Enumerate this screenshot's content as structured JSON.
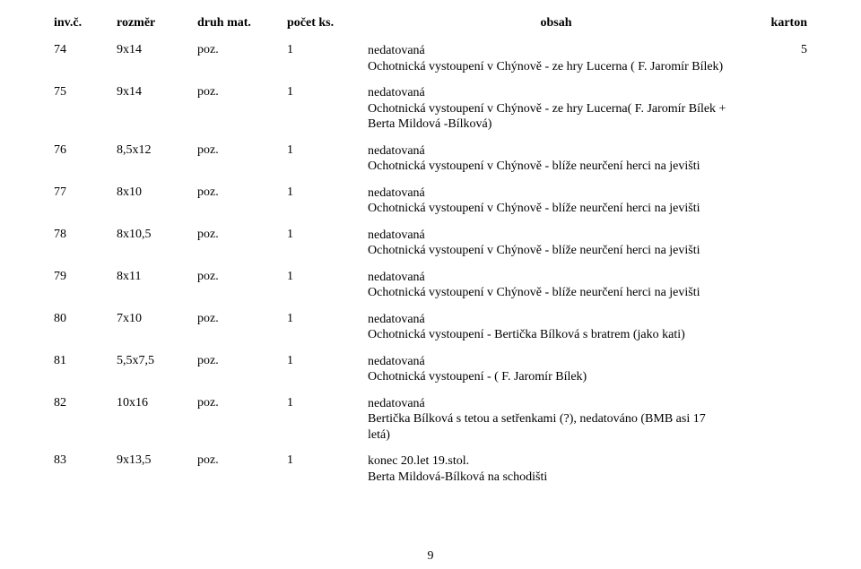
{
  "header": {
    "inv": "inv.č.",
    "rozmer": "rozměr",
    "druh": "druh mat.",
    "pocet": "počet ks.",
    "obsah": "obsah",
    "karton": "karton"
  },
  "rows": [
    {
      "inv": "74",
      "roz": "9x14",
      "druh": "poz.",
      "pocet": "1",
      "obsah": "nedatovaná\nOchotnická vystoupení v Chýnově  - ze hry Lucerna ( F. Jaromír Bílek)",
      "karton": "5"
    },
    {
      "inv": "75",
      "roz": "9x14",
      "druh": "poz.",
      "pocet": "1",
      "obsah": "nedatovaná\nOchotnická vystoupení v Chýnově  - ze hry Lucerna( F. Jaromír Bílek + Berta Mildová -Bílková)",
      "karton": ""
    },
    {
      "inv": "76",
      "roz": "8,5x12",
      "druh": "poz.",
      "pocet": "1",
      "obsah": "nedatovaná\nOchotnická vystoupení v Chýnově  - blíže neurčení herci na jevišti",
      "karton": ""
    },
    {
      "inv": "77",
      "roz": "8x10",
      "druh": "poz.",
      "pocet": "1",
      "obsah": "nedatovaná\nOchotnická vystoupení v Chýnově  - blíže neurčení herci na jevišti",
      "karton": ""
    },
    {
      "inv": "78",
      "roz": "8x10,5",
      "druh": "poz.",
      "pocet": "1",
      "obsah": "nedatovaná\nOchotnická vystoupení v Chýnově  - blíže neurčení herci na jevišti",
      "karton": ""
    },
    {
      "inv": "79",
      "roz": "8x11",
      "druh": "poz.",
      "pocet": "1",
      "obsah": "nedatovaná\nOchotnická vystoupení v Chýnově  - blíže neurčení herci na jevišti",
      "karton": ""
    },
    {
      "inv": "80",
      "roz": "7x10",
      "druh": "poz.",
      "pocet": "1",
      "obsah": "nedatovaná\nOchotnická vystoupení - Bertička Bílková s bratrem (jako kati)",
      "karton": ""
    },
    {
      "inv": "81",
      "roz": "5,5x7,5",
      "druh": "poz.",
      "pocet": "1",
      "obsah": "nedatovaná\nOchotnická vystoupení - ( F. Jaromír Bílek)",
      "karton": ""
    },
    {
      "inv": "82",
      "roz": "10x16",
      "druh": "poz.",
      "pocet": "1",
      "obsah": "nedatovaná\nBertička Bílková s tetou a setřenkami (?), nedatováno (BMB asi 17 letá)",
      "karton": ""
    },
    {
      "inv": "83",
      "roz": "9x13,5",
      "druh": "poz.",
      "pocet": "1",
      "obsah": "konec 20.let 19.stol.\nBerta Mildová-Bílková na schodišti",
      "karton": ""
    }
  ],
  "page_number": "9"
}
